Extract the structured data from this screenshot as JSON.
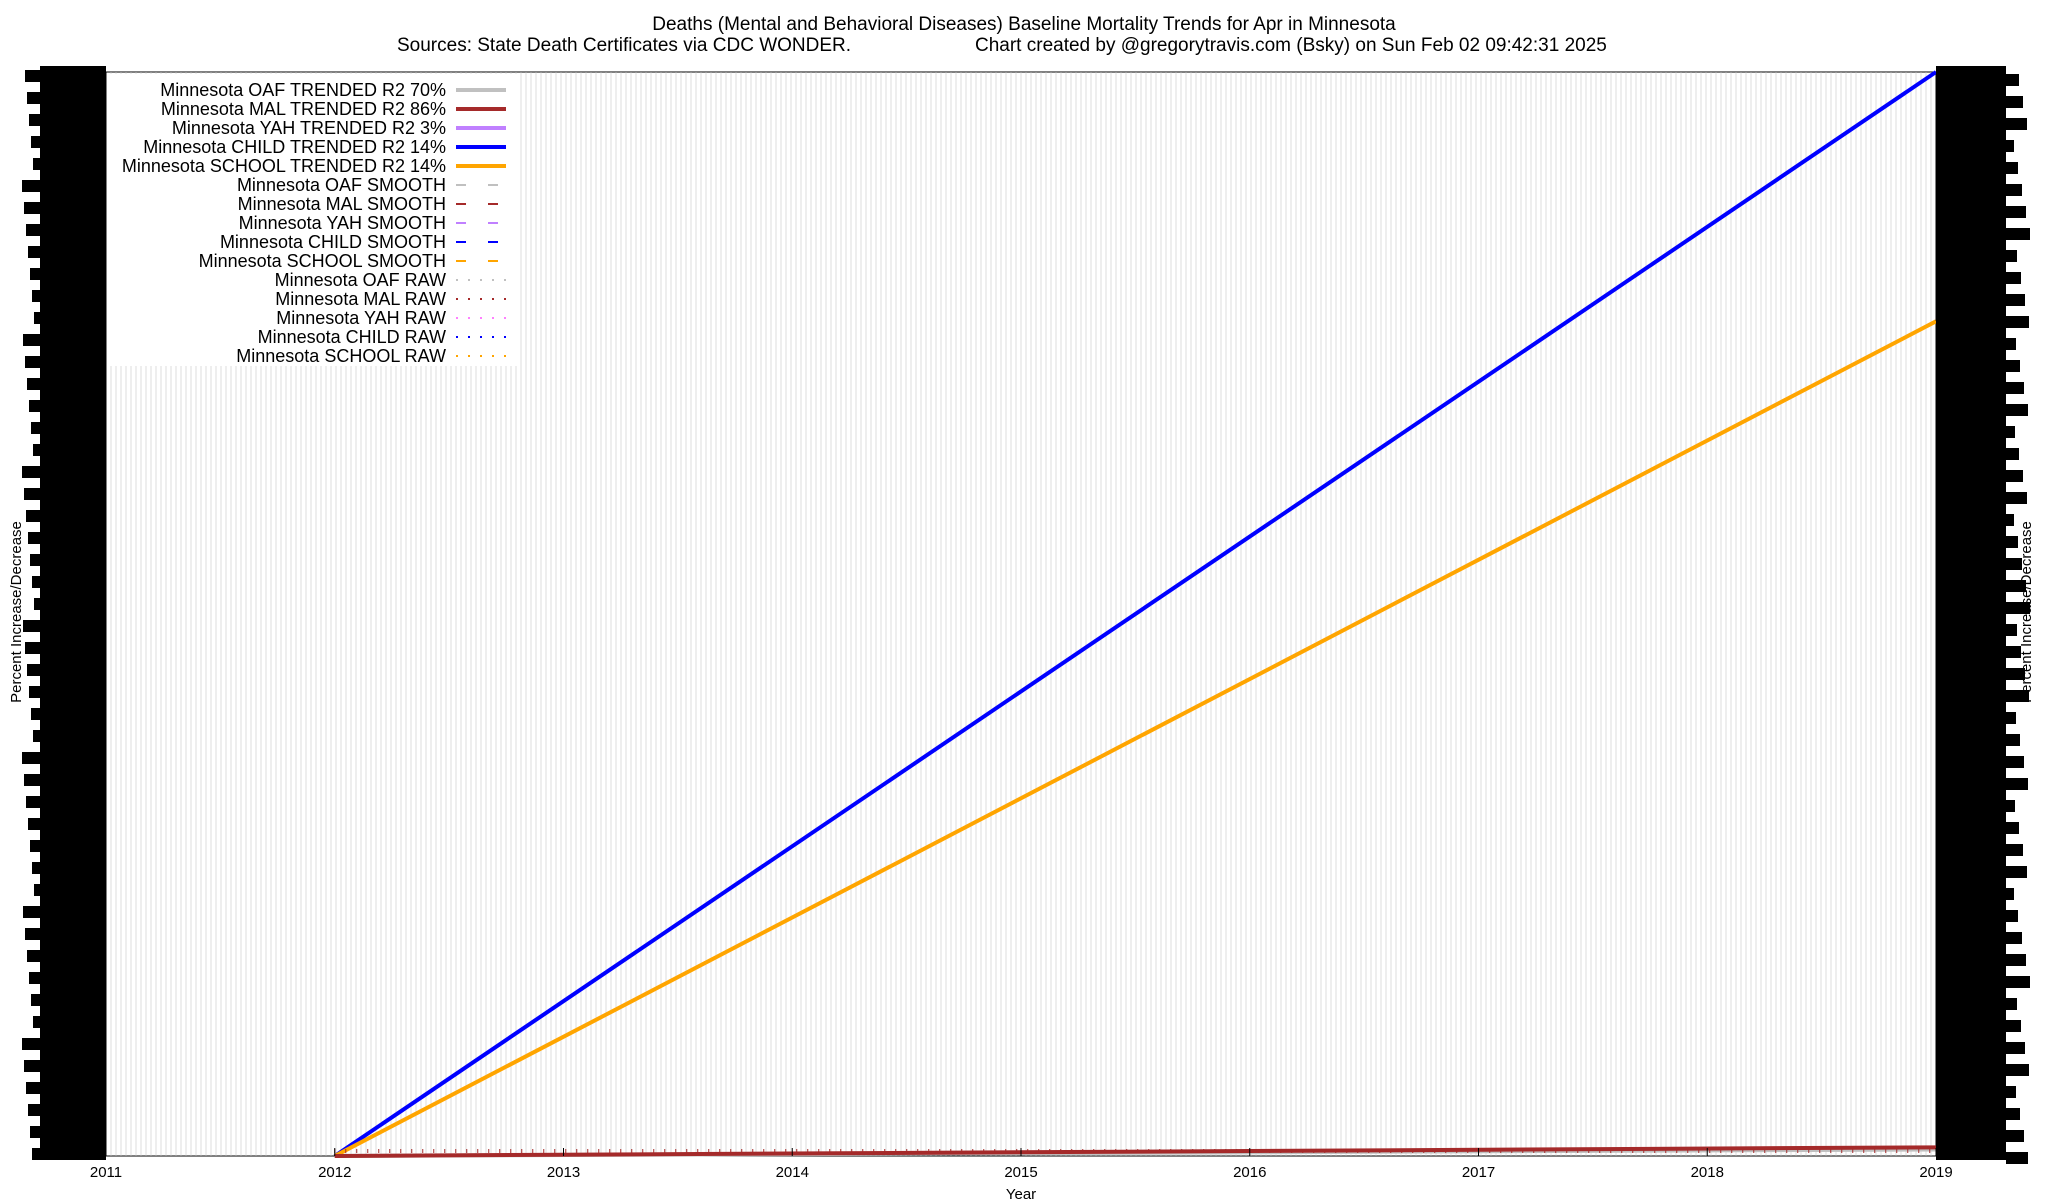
{
  "chart_data": {
    "type": "line",
    "title": "Deaths (Mental and Behavioral Diseases)  Baseline Mortality Trends for Apr in Minnesota",
    "subtitle_left": "Sources: State Death Certificates via CDC WONDER.",
    "subtitle_right": "Chart created by @gregorytravis.com (Bsky) on Sun Feb 02 09:42:31 2025",
    "xlabel": "Year",
    "ylabel_left": "Percent Increase/Decrease",
    "ylabel_right": "Percent Increase/Decrease",
    "x_ticks": [
      "2011",
      "2012",
      "2013",
      "2014",
      "2015",
      "2016",
      "2017",
      "2018",
      "2019"
    ],
    "xlim": [
      2011,
      2019
    ],
    "ylim": [
      0,
      1
    ],
    "grid": true,
    "legend_position": "top-left",
    "legend": [
      {
        "label": "Minnesota OAF TRENDED R2  70%",
        "color": "#c0c0c0",
        "style": "solid"
      },
      {
        "label": "Minnesota MAL TRENDED R2  86%",
        "color": "#a52a2a",
        "style": "solid"
      },
      {
        "label": "Minnesota YAH TRENDED R2   3%",
        "color": "#c080ff",
        "style": "solid"
      },
      {
        "label": "Minnesota CHILD TRENDED R2  14%",
        "color": "#0000ff",
        "style": "solid"
      },
      {
        "label": "Minnesota SCHOOL TRENDED R2  14%",
        "color": "#ffa500",
        "style": "solid"
      },
      {
        "label": "Minnesota OAF SMOOTH",
        "color": "#c0c0c0",
        "style": "dashed"
      },
      {
        "label": "Minnesota MAL SMOOTH",
        "color": "#a52a2a",
        "style": "dashed"
      },
      {
        "label": "Minnesota YAH SMOOTH",
        "color": "#c080ff",
        "style": "dashed"
      },
      {
        "label": "Minnesota CHILD SMOOTH",
        "color": "#0000ff",
        "style": "dashed"
      },
      {
        "label": "Minnesota SCHOOL SMOOTH",
        "color": "#ffa500",
        "style": "dashed"
      },
      {
        "label": "Minnesota OAF RAW",
        "color": "#c0c0c0",
        "style": "dotted"
      },
      {
        "label": "Minnesota MAL RAW",
        "color": "#a52a2a",
        "style": "dotted"
      },
      {
        "label": "Minnesota YAH RAW",
        "color": "#ff80ff",
        "style": "dotted"
      },
      {
        "label": "Minnesota CHILD RAW",
        "color": "#0000ff",
        "style": "dotted"
      },
      {
        "label": "Minnesota SCHOOL RAW",
        "color": "#ffa500",
        "style": "dotted"
      }
    ],
    "series": [
      {
        "key": "child_trend",
        "color": "#0000ff",
        "x": [
          2012,
          2019
        ],
        "y": [
          0,
          1
        ]
      },
      {
        "key": "school_trend",
        "color": "#ffa500",
        "x": [
          2012,
          2019
        ],
        "y": [
          0,
          0.77
        ]
      },
      {
        "key": "oaf_trend",
        "color": "#c0c0c0",
        "x": [
          2012,
          2019
        ],
        "y": [
          0,
          0.006
        ]
      },
      {
        "key": "mal_trend",
        "color": "#a52a2a",
        "x": [
          2012,
          2019
        ],
        "y": [
          0,
          0.008
        ]
      }
    ]
  }
}
